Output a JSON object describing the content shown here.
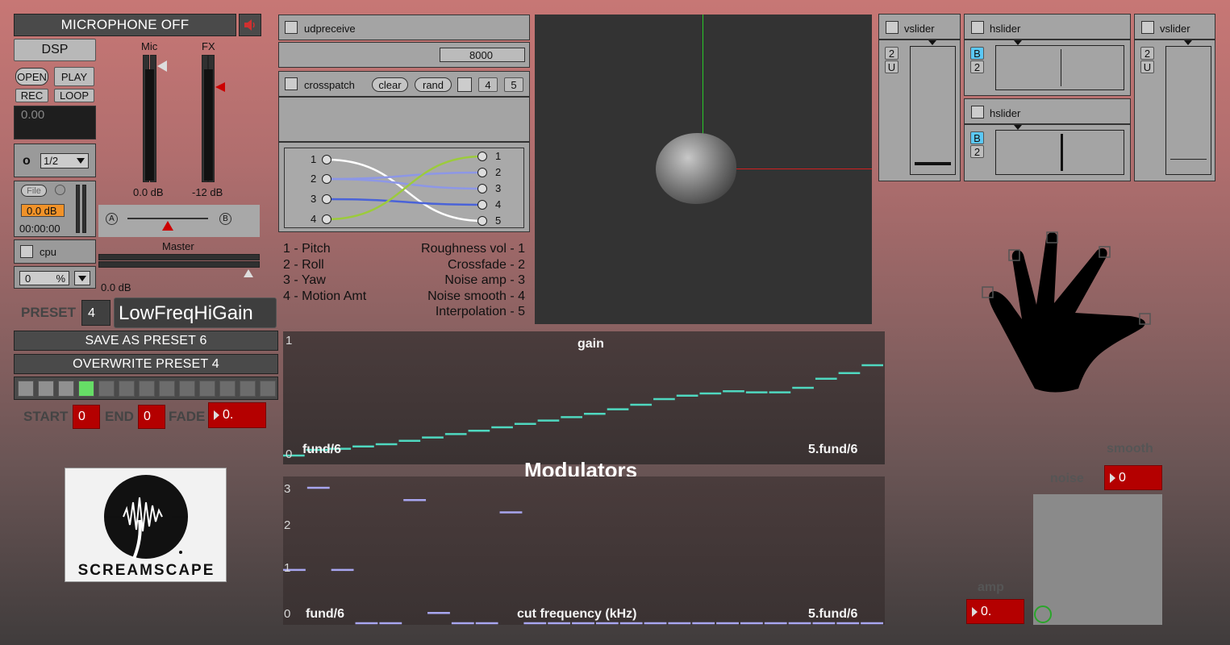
{
  "transport": {
    "mic_toggle": "MICROPHONE OFF",
    "dsp": "DSP",
    "open": "OPEN",
    "play": "PLAY",
    "rec": "REC",
    "loop": "LOOP",
    "time_value": "0.00",
    "o_label": "o",
    "ratio_value": "1/2",
    "file_label": "File",
    "file_gain": "0.0 dB",
    "file_time": "00:00:00",
    "cpu_label": "cpu",
    "cpu_value": "0",
    "cpu_unit": "%"
  },
  "mixer": {
    "mic_label": "Mic",
    "fx_label": "FX",
    "mic_db": "0.0 dB",
    "fx_db": "-12 dB",
    "xfade_a": "A",
    "xfade_b": "B",
    "master_label": "Master",
    "master_db": "0.0 dB"
  },
  "preset": {
    "label": "PRESET",
    "number": "4",
    "name": "LowFreqHiGain",
    "save_button": "SAVE AS PRESET 6",
    "overwrite_button": "OVERWRITE PRESET 4",
    "slots": [
      1,
      2,
      3,
      4,
      5,
      6,
      7,
      8,
      9,
      10,
      11,
      12,
      13
    ],
    "active_slot": 4,
    "start_label": "START",
    "start_value": "0",
    "end_label": "END",
    "end_value": "0",
    "fade_label": "FADE",
    "fade_value": "0."
  },
  "logo": {
    "text": "SCREAMSCAPE"
  },
  "routing": {
    "udp_label": "udpreceive",
    "udp_port": "8000",
    "crosspatch_label": "crosspatch",
    "clear": "clear",
    "rand": "rand",
    "in_count": "4",
    "out_count": "5",
    "inputs": [
      "1",
      "2",
      "3",
      "4"
    ],
    "outputs": [
      "1",
      "2",
      "3",
      "4",
      "5"
    ],
    "input_legend": [
      "1 - Pitch",
      "2 - Roll",
      "3 - Yaw",
      "4 - Motion Amt"
    ],
    "output_legend": [
      "Roughness vol - 1",
      "Crossfade - 2",
      "Noise amp - 3",
      "Noise smooth - 4",
      "Interpolation - 5"
    ]
  },
  "sliders": {
    "v1_label": "vslider",
    "h1_label": "hslider",
    "h2_label": "hslider",
    "v2_label": "vslider",
    "v1_box_a": "2",
    "v1_box_b": "U",
    "h1_box_a": "B",
    "h1_box_b": "2",
    "h2_box_a": "B",
    "h2_box_b": "2",
    "v2_box_a": "2",
    "v2_box_b": "U",
    "v1_level": 0.05,
    "h1_level": 0.5,
    "h2_level": 0.5,
    "v2_level": 0.08
  },
  "modulators_title": "Modulators",
  "gain_plot": {
    "title": "gain",
    "y_top": "1",
    "y_bottom": "0",
    "x_left": "fund/6",
    "x_right": "5.fund/6"
  },
  "cut_plot": {
    "title": "cut frequency (kHz)",
    "y_ticks": [
      "3",
      "2",
      "1",
      "0"
    ],
    "x_left": "fund/6",
    "x_right": "5.fund/6"
  },
  "noise_panel": {
    "smooth_label": "smooth",
    "smooth_value": "0",
    "noise_label": "noise",
    "amp_label": "amp",
    "amp_value": "0."
  },
  "colors": {
    "gain_line": "#4fd8c0",
    "cut_line": "#a8a6f0",
    "active_slot": "#66dd66",
    "number_box": "#b40000"
  },
  "chart_data": [
    {
      "type": "line",
      "title": "gain",
      "xlabel": "",
      "ylabel": "",
      "ylim": [
        0,
        1
      ],
      "x_tick_labels": [
        "fund/6",
        "5.fund/6"
      ],
      "values": [
        0.0,
        0.05,
        0.06,
        0.08,
        0.1,
        0.13,
        0.16,
        0.19,
        0.22,
        0.25,
        0.28,
        0.31,
        0.34,
        0.37,
        0.41,
        0.45,
        0.5,
        0.53,
        0.55,
        0.57,
        0.56,
        0.56,
        0.6,
        0.68,
        0.73,
        0.8
      ]
    },
    {
      "type": "line",
      "title": "cut frequency (kHz)",
      "xlabel": "",
      "ylabel": "",
      "ylim": [
        0,
        3.3
      ],
      "x_tick_labels": [
        "fund/6",
        "5.fund/6"
      ],
      "values": [
        1.3,
        3.3,
        1.3,
        0.0,
        0.0,
        3.0,
        0.25,
        0.0,
        0.0,
        2.7,
        0.0,
        0.0,
        0.0,
        0.0,
        0.0,
        0.0,
        0.0,
        0.0,
        0.0,
        0.0,
        0.0,
        0.0,
        0.0,
        0.0,
        0.0
      ]
    }
  ]
}
